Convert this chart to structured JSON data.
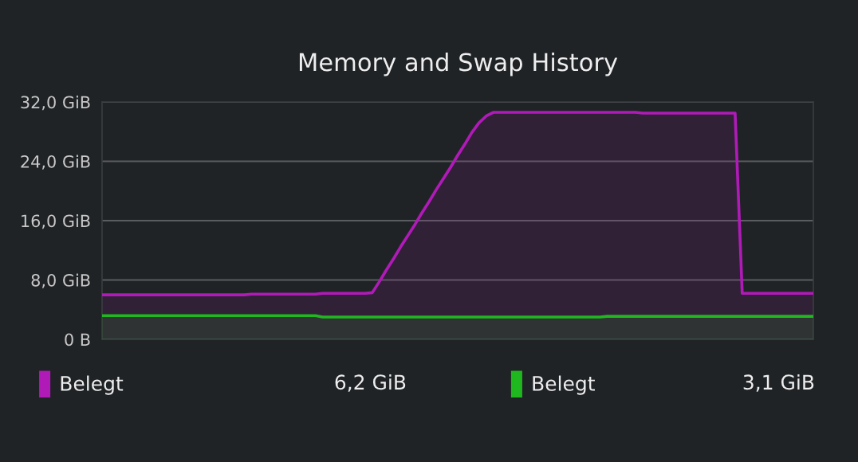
{
  "chart_data": {
    "type": "area",
    "title": "Memory and Swap History",
    "categories": [
      null,
      null,
      null,
      null,
      null,
      null,
      null,
      null,
      null,
      null,
      null,
      null,
      null,
      null,
      null,
      null,
      null,
      null,
      null,
      null,
      null,
      null,
      null,
      null,
      null,
      null,
      null,
      null,
      null,
      null,
      null,
      null,
      null,
      null,
      null,
      null,
      null,
      null,
      null,
      null,
      null,
      null,
      null,
      null,
      null,
      null,
      null,
      null,
      null,
      null,
      null,
      null,
      null,
      null,
      null,
      null,
      null,
      null,
      null,
      null,
      null,
      null,
      null,
      null,
      null,
      null,
      null,
      null,
      null,
      null,
      null,
      null,
      null,
      null,
      null,
      null,
      null,
      null,
      null,
      null,
      null,
      null,
      null,
      null,
      null,
      null,
      null,
      null,
      null,
      null,
      null,
      null,
      null,
      null,
      null,
      null,
      null,
      null,
      null,
      null,
      null
    ],
    "series": [
      {
        "name": "Belegt",
        "color": "#b01bb8",
        "values": [
          6.0,
          6.0,
          6.0,
          6.0,
          6.0,
          6.0,
          6.0,
          6.0,
          6.0,
          6.0,
          6.0,
          6.0,
          6.0,
          6.0,
          6.0,
          6.0,
          6.0,
          6.0,
          6.0,
          6.0,
          6.0,
          6.1,
          6.1,
          6.1,
          6.1,
          6.1,
          6.1,
          6.1,
          6.1,
          6.1,
          6.1,
          6.2,
          6.2,
          6.2,
          6.2,
          6.2,
          6.2,
          6.2,
          6.3,
          7.8,
          9.4,
          10.9,
          12.5,
          14.0,
          15.5,
          17.1,
          18.6,
          20.2,
          21.7,
          23.2,
          24.8,
          26.3,
          27.9,
          29.2,
          30.1,
          30.6,
          30.6,
          30.6,
          30.6,
          30.6,
          30.6,
          30.6,
          30.6,
          30.6,
          30.6,
          30.6,
          30.6,
          30.6,
          30.6,
          30.6,
          30.6,
          30.6,
          30.6,
          30.6,
          30.6,
          30.6,
          30.5,
          30.5,
          30.5,
          30.5,
          30.5,
          30.5,
          30.5,
          30.5,
          30.5,
          30.5,
          30.5,
          30.5,
          30.5,
          30.5,
          6.2,
          6.2,
          6.2,
          6.2,
          6.2,
          6.2,
          6.2,
          6.2,
          6.2,
          6.2,
          6.2
        ]
      },
      {
        "name": "Belegt",
        "color": "#1fb81f",
        "values": [
          3.2,
          3.2,
          3.2,
          3.2,
          3.2,
          3.2,
          3.2,
          3.2,
          3.2,
          3.2,
          3.2,
          3.2,
          3.2,
          3.2,
          3.2,
          3.2,
          3.2,
          3.2,
          3.2,
          3.2,
          3.2,
          3.2,
          3.2,
          3.2,
          3.2,
          3.2,
          3.2,
          3.2,
          3.2,
          3.2,
          3.2,
          3.0,
          3.0,
          3.0,
          3.0,
          3.0,
          3.0,
          3.0,
          3.0,
          3.0,
          3.0,
          3.0,
          3.0,
          3.0,
          3.0,
          3.0,
          3.0,
          3.0,
          3.0,
          3.0,
          3.0,
          3.0,
          3.0,
          3.0,
          3.0,
          3.0,
          3.0,
          3.0,
          3.0,
          3.0,
          3.0,
          3.0,
          3.0,
          3.0,
          3.0,
          3.0,
          3.0,
          3.0,
          3.0,
          3.0,
          3.0,
          3.1,
          3.1,
          3.1,
          3.1,
          3.1,
          3.1,
          3.1,
          3.1,
          3.1,
          3.1,
          3.1,
          3.1,
          3.1,
          3.1,
          3.1,
          3.1,
          3.1,
          3.1,
          3.1,
          3.1,
          3.1,
          3.1,
          3.1,
          3.1,
          3.1,
          3.1,
          3.1,
          3.1,
          3.1,
          3.1
        ]
      }
    ],
    "ylim": [
      0,
      32
    ],
    "yticks": [
      {
        "value": 0,
        "label": "0 B"
      },
      {
        "value": 8,
        "label": "8,0 GiB"
      },
      {
        "value": 16,
        "label": "16,0 GiB"
      },
      {
        "value": 24,
        "label": "24,0 GiB"
      },
      {
        "value": 32,
        "label": "32,0 GiB"
      }
    ],
    "grid": "y",
    "legend": "bottom",
    "tick_labels": "y",
    "annotations": [
      "6,2 GiB",
      "3,1 GiB"
    ]
  }
}
